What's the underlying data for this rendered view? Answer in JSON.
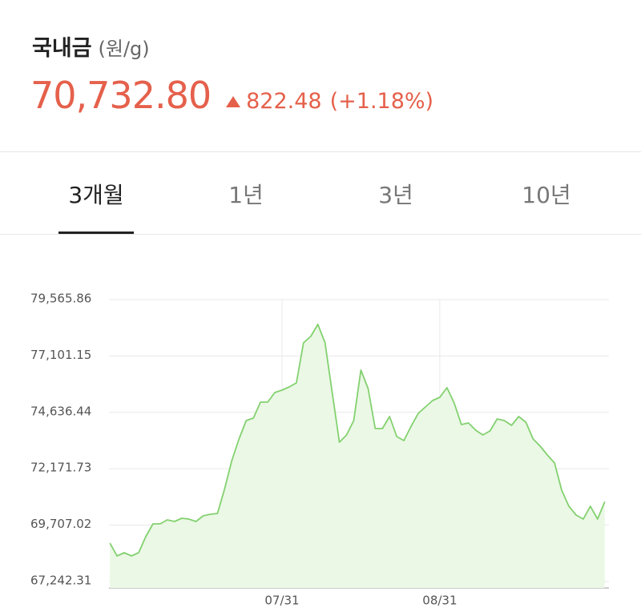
{
  "header": {
    "title": "국내금",
    "unit": "(원/g)",
    "price": "70,732.80",
    "change": "822.48",
    "change_pct": "(+1.18%)"
  },
  "tabs": {
    "items": [
      "3개월",
      "1년",
      "3년",
      "10년"
    ],
    "active": 0
  },
  "chart_data": {
    "type": "area",
    "color": "#83d16f",
    "fill": "#ebf8e6",
    "grid": true,
    "categories": [
      null,
      null,
      null,
      null,
      null,
      null,
      null,
      null,
      null,
      null,
      null,
      null,
      null,
      null,
      null,
      null,
      null,
      null,
      null,
      null,
      null,
      null,
      null,
      null,
      "07/31",
      null,
      null,
      null,
      null,
      null,
      null,
      null,
      null,
      null,
      null,
      null,
      null,
      null,
      null,
      null,
      null,
      null,
      null,
      null,
      null,
      null,
      "08/31",
      null,
      null,
      null,
      null,
      null,
      null,
      null,
      null,
      null,
      null,
      null,
      null,
      null,
      null,
      null,
      null,
      null,
      null,
      null,
      null,
      null,
      null,
      null
    ],
    "values": [
      68922,
      68362,
      68502,
      68362,
      68502,
      69203,
      69763,
      69763,
      69938,
      69868,
      70008,
      69973,
      69868,
      70113,
      70183,
      70218,
      71303,
      72529,
      73474,
      74279,
      74384,
      75084,
      75084,
      75504,
      75609,
      75749,
      75924,
      77675,
      77955,
      78480,
      77675,
      75504,
      73334,
      73649,
      74279,
      76485,
      75679,
      73929,
      73929,
      74454,
      73579,
      73404,
      74034,
      74594,
      74874,
      75154,
      75294,
      75714,
      75049,
      74104,
      74174,
      73859,
      73649,
      73824,
      74349,
      74279,
      74069,
      74454,
      74209,
      73474,
      73159,
      72774,
      72423,
      71233,
      70533,
      70148,
      69973,
      70533,
      69973,
      70733
    ],
    "ylim": [
      67242.31,
      79565.86
    ],
    "yticks": [
      {
        "value": 67242.31,
        "label": "67,242.31"
      },
      {
        "value": 69707.02,
        "label": "69,707.02"
      },
      {
        "value": 72171.73,
        "label": "72,171.73"
      },
      {
        "value": 74636.44,
        "label": "74,636.44"
      },
      {
        "value": 77101.15,
        "label": "77,101.15"
      },
      {
        "value": 79565.86,
        "label": "79,565.86"
      }
    ]
  }
}
